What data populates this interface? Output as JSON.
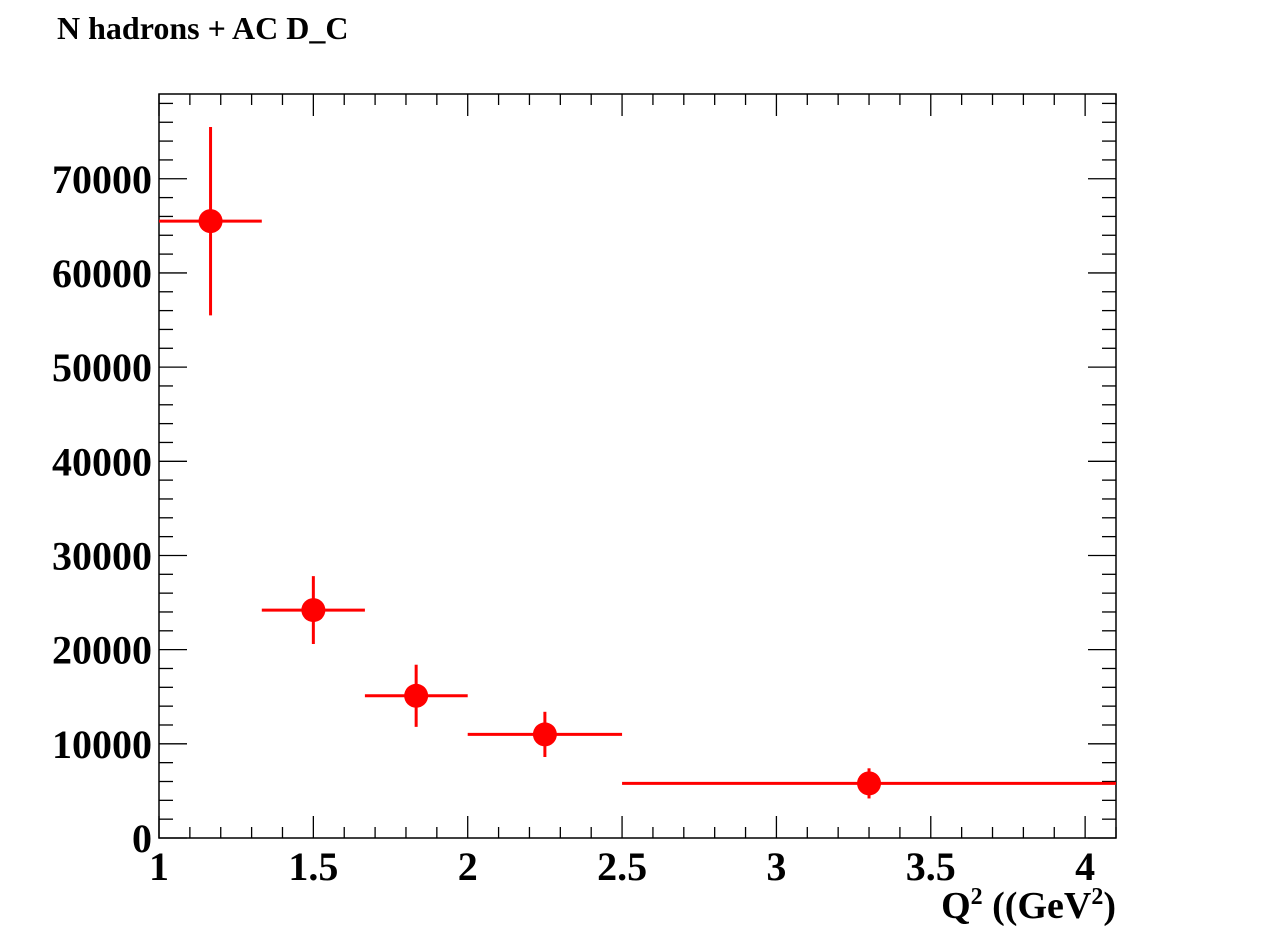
{
  "chart_data": {
    "type": "scatter",
    "title": "N hadrons + AC D_C",
    "xlabel": {
      "base": "Q",
      "sup": "2",
      "unit_open": " ((GeV",
      "unit_sup": "2",
      "unit_close": ")"
    },
    "ylabel": "",
    "xlim": [
      1,
      4.1
    ],
    "ylim": [
      0,
      79000
    ],
    "x_ticks": [
      "1",
      "1.5",
      "2",
      "2.5",
      "3",
      "3.5",
      "4"
    ],
    "x_tick_values": [
      1,
      1.5,
      2,
      2.5,
      3,
      3.5,
      4
    ],
    "y_ticks": [
      "0",
      "10000",
      "20000",
      "30000",
      "40000",
      "50000",
      "60000",
      "70000"
    ],
    "y_tick_values": [
      0,
      10000,
      20000,
      30000,
      40000,
      50000,
      60000,
      70000
    ],
    "grid": false,
    "legend": "none",
    "series": [
      {
        "color": "#ff0000",
        "points": [
          {
            "x": 1.167,
            "y": 65500,
            "x_lo": 1.0,
            "x_hi": 1.333,
            "y_err": 10000
          },
          {
            "x": 1.5,
            "y": 24200,
            "x_lo": 1.333,
            "x_hi": 1.667,
            "y_err": 3600
          },
          {
            "x": 1.833,
            "y": 15100,
            "x_lo": 1.667,
            "x_hi": 2.0,
            "y_err": 3300
          },
          {
            "x": 2.25,
            "y": 11000,
            "x_lo": 2.0,
            "x_hi": 2.5,
            "y_err": 2400
          },
          {
            "x": 3.3,
            "y": 5800,
            "x_lo": 2.5,
            "x_hi": 4.1,
            "y_err": 1600
          }
        ]
      }
    ]
  }
}
